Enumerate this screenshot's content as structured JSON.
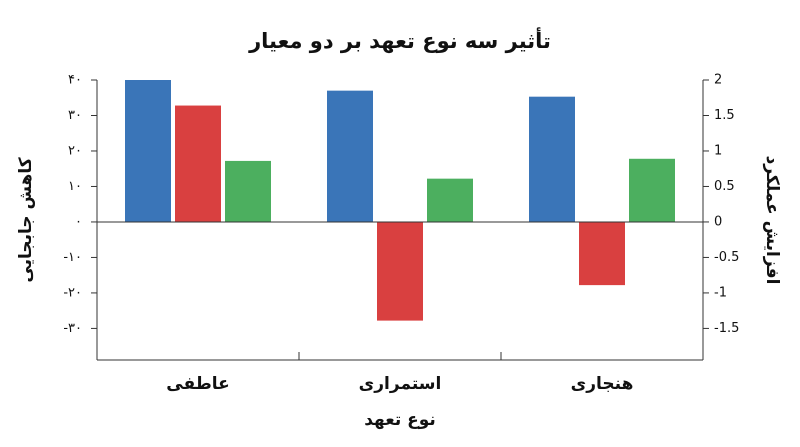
{
  "chart_data": {
    "type": "bar",
    "title": "تأثیر سه نوع تعهد بر دو معیار",
    "x_label": "نوع تعهد",
    "y_label": "کاهش جابجایی",
    "y2_label": "افزایش عملکرد",
    "categories": [
      "عاطفی",
      "استمراری",
      "هنجاری"
    ],
    "series": [
      {
        "color": "#3a75b8",
        "values": [
          40,
          37,
          35.3
        ]
      },
      {
        "color": "#d94040",
        "values": [
          32.8,
          -27.8,
          -17.8
        ]
      },
      {
        "color": "#4caf5f",
        "values": [
          0.86,
          0.61,
          0.89
        ],
        "axis": "y2"
      }
    ],
    "ylim": [
      -38.9,
      40
    ],
    "yticks": [
      {
        "value": 40,
        "label": "۴۰"
      },
      {
        "value": 30,
        "label": "۳۰"
      },
      {
        "value": 20,
        "label": "۲۰"
      },
      {
        "value": 10,
        "label": "۱۰"
      },
      {
        "value": 0,
        "label": "۰"
      },
      {
        "value": -10,
        "label": "-۱۰"
      },
      {
        "value": -20,
        "label": "-۲۰"
      },
      {
        "value": -30,
        "label": "-۳۰"
      }
    ],
    "y2lim": [
      -1.945,
      2
    ],
    "y2ticks": [
      2,
      1.5,
      1,
      0.5,
      0,
      -0.5,
      -1,
      -1.5
    ]
  }
}
